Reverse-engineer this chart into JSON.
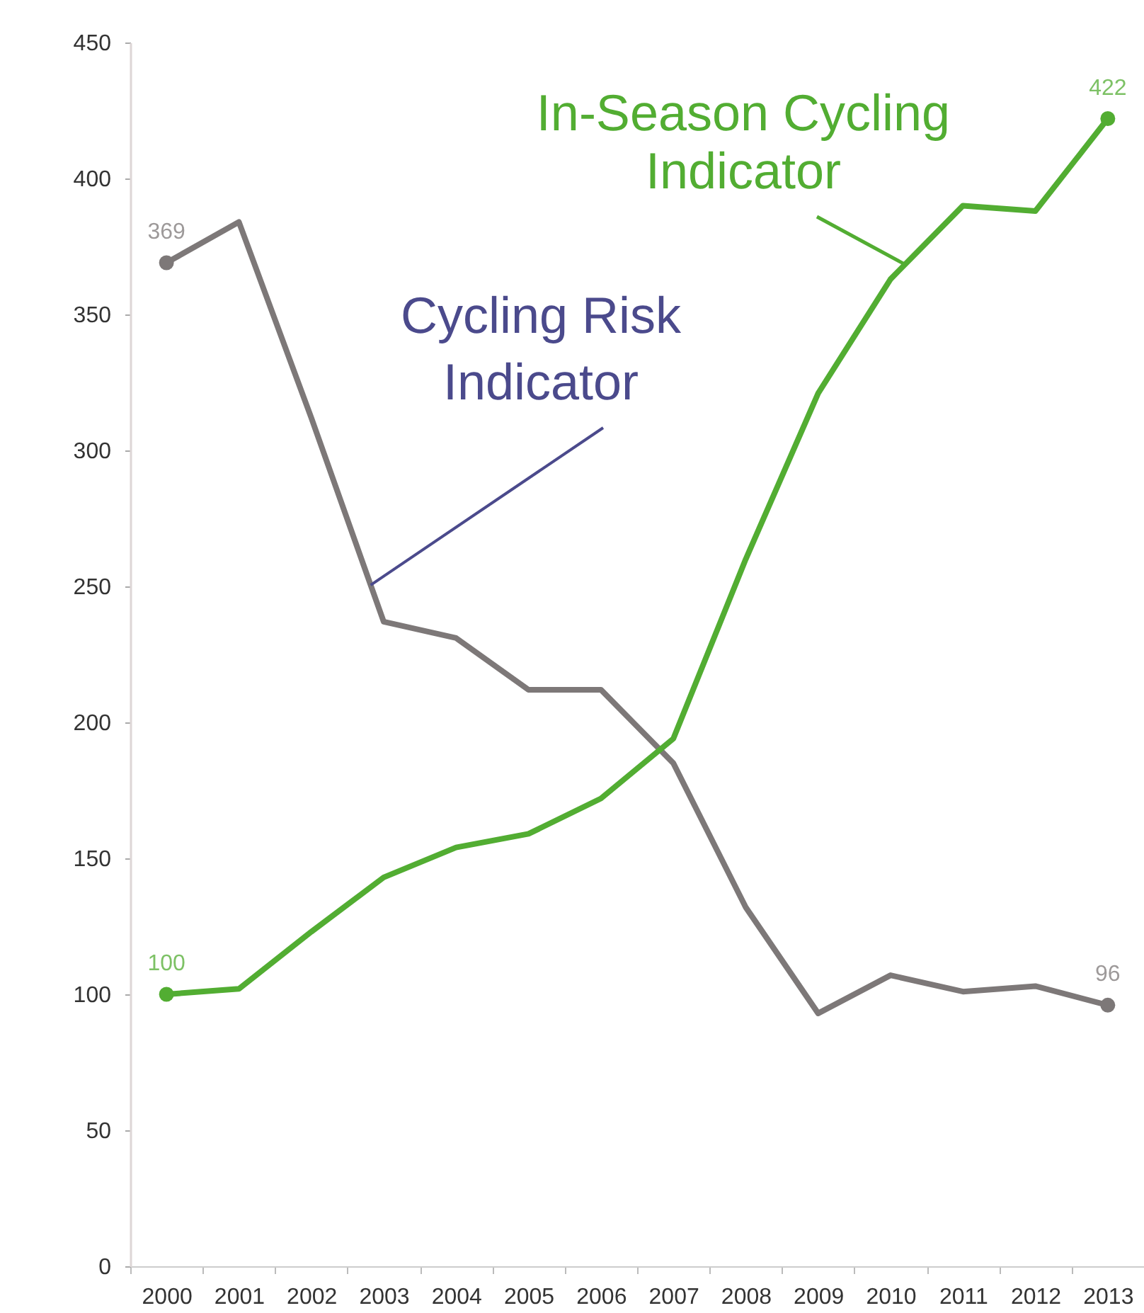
{
  "chart_data": {
    "type": "line",
    "categories": [
      "2000",
      "2001",
      "2002",
      "2003",
      "2004",
      "2005",
      "2006",
      "2007",
      "2008",
      "2009",
      "2010",
      "2011",
      "2012",
      "2013"
    ],
    "ylim": [
      0,
      450
    ],
    "yticks": [
      0,
      50,
      100,
      150,
      200,
      250,
      300,
      350,
      400,
      450
    ],
    "series": [
      {
        "name": "Cycling Risk Indicator",
        "color": "#7d7878",
        "values": [
          369,
          384,
          312,
          237,
          231,
          212,
          212,
          185,
          132,
          93,
          107,
          101,
          103,
          96
        ],
        "value_labels": [
          "369",
          null,
          null,
          null,
          null,
          null,
          null,
          null,
          null,
          null,
          null,
          null,
          null,
          "96"
        ]
      },
      {
        "name": "In-Season Cycling Indicator",
        "color": "#52ad32",
        "values": [
          100,
          102,
          123,
          143,
          154,
          159,
          172,
          194,
          260,
          321,
          363,
          390,
          388,
          422
        ],
        "value_labels": [
          "100",
          null,
          null,
          null,
          null,
          null,
          null,
          null,
          null,
          null,
          null,
          null,
          null,
          "422"
        ]
      }
    ]
  }
}
